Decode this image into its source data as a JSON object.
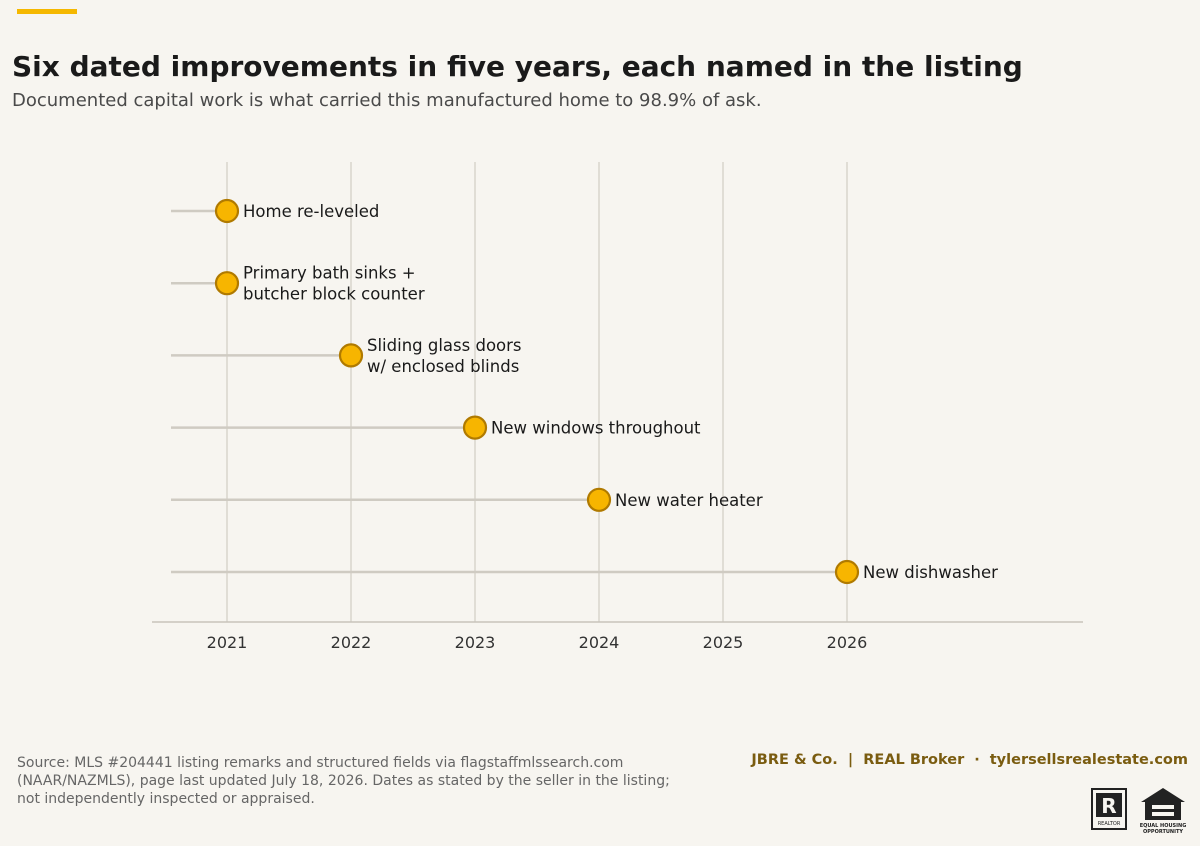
{
  "header": {
    "title": "Six dated improvements in five years, each named in the listing",
    "subtitle": "Documented capital work is what carried this manufactured home to 98.9% of ask."
  },
  "chart_data": {
    "type": "scatter",
    "style": "dot timeline with lollipop stems",
    "title": "Six dated improvements in five years, each named in the listing",
    "subtitle": "Documented capital work is what carried this manufactured home to 98.9% of ask.",
    "xlabel": "",
    "ylabel": "",
    "x_ticks": [
      2021,
      2022,
      2023,
      2024,
      2025,
      2026
    ],
    "xlim": [
      2020.4,
      2027.9
    ],
    "grid": "vertical",
    "legend": "none",
    "points": [
      {
        "year": 2021,
        "label": [
          "Home re-leveled"
        ]
      },
      {
        "year": 2021,
        "label": [
          "Primary bath sinks +",
          "butcher block counter"
        ]
      },
      {
        "year": 2022,
        "label": [
          "Sliding glass doors",
          "w/ enclosed blinds"
        ]
      },
      {
        "year": 2023,
        "label": [
          "New windows throughout"
        ]
      },
      {
        "year": 2024,
        "label": [
          "New water heater"
        ]
      },
      {
        "year": 2026,
        "label": [
          "New dishwasher"
        ]
      }
    ],
    "colors": {
      "marker_fill": "#f7b500",
      "marker_stroke": "#b07a00",
      "stem": "#cfcbc2",
      "grid": "#d9d5cc",
      "axis": "#c8c4bb",
      "accent": "#f5b800"
    }
  },
  "footer": {
    "source": "Source: MLS #204441 listing remarks and structured fields via flagstaffmlssearch.com (NAAR/NAZMLS), page last updated July 18, 2026. Dates as stated by the seller in the listing; not independently inspected or appraised.",
    "brand_name": "JBRE & Co.  |  REAL Broker",
    "separator": "·",
    "website": "tylersellsrealestate.com",
    "realtor_logo_text": "REALTOR",
    "eho_logo_text": "EQUAL HOUSING OPPORTUNITY"
  }
}
